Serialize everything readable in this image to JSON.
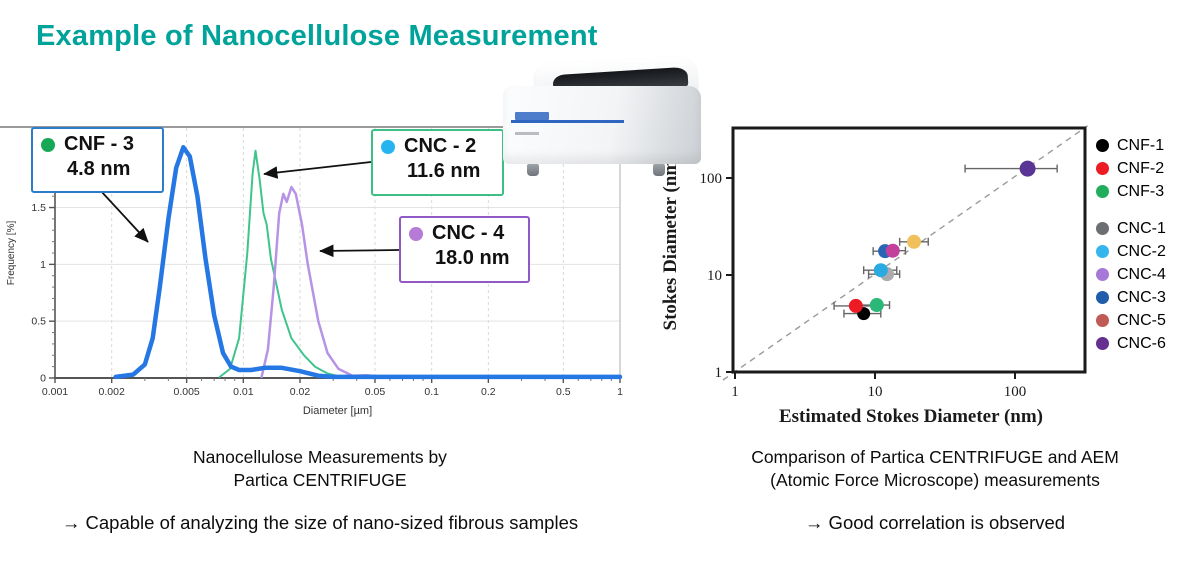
{
  "slide": {
    "title": "Example of Nanocellulose Measurement",
    "title_color": "#00a39a"
  },
  "left_panel": {
    "callouts": [
      {
        "name": "CNF - 3",
        "value": "4.8 nm",
        "dot_color": "#17a857",
        "border_color": "#2d7cc9"
      },
      {
        "name": "CNC - 2",
        "value": "11.6 nm",
        "dot_color": "#25b4f0",
        "border_color": "#3bbf85"
      },
      {
        "name": "CNC - 4",
        "value": "18.0 nm",
        "dot_color": "#b57bd5",
        "border_color": "#9059c5"
      }
    ],
    "caption_line1": "Nanocellulose Measurements by",
    "caption_line2": "Partica CENTRIFUGE",
    "bullet": "→ Capable of analyzing the size of nano-sized fibrous samples"
  },
  "right_panel": {
    "caption_line1": "Comparison of Partica CENTRIFUGE and AEM",
    "caption_line2": "(Atomic Force Microscope) measurements",
    "bullet": "→ Good correlation is observed"
  },
  "chart_data": [
    {
      "type": "line",
      "title": "",
      "xlabel": "Diameter [µm]",
      "ylabel": "Frequency [%]",
      "x_scale": "log",
      "xlim": [
        0.001,
        1
      ],
      "ylim": [
        0,
        2.2
      ],
      "x_ticks": [
        0.001,
        0.002,
        0.005,
        0.01,
        0.02,
        0.05,
        0.1,
        0.2,
        0.5,
        1
      ],
      "x_tick_labels": [
        "0.001",
        "0.002",
        "0.005",
        "0.01",
        "0.02",
        "0.05",
        "0.1",
        "0.2",
        "0.5",
        "1"
      ],
      "y_ticks": [
        0,
        0.5,
        1,
        1.5
      ],
      "y_tick_labels": [
        "0",
        "0.5",
        "1",
        "1.5"
      ],
      "grid": true,
      "series": [
        {
          "name": "CNC-2",
          "peak_nm": 11.6,
          "color": "#3ec48c",
          "width": 2,
          "points": [
            [
              0.0075,
              0.01
            ],
            [
              0.0085,
              0.08
            ],
            [
              0.0095,
              0.35
            ],
            [
              0.0105,
              1.1
            ],
            [
              0.0112,
              1.8
            ],
            [
              0.0116,
              2.0
            ],
            [
              0.0122,
              1.75
            ],
            [
              0.0128,
              1.45
            ],
            [
              0.0133,
              1.35
            ],
            [
              0.014,
              1.05
            ],
            [
              0.016,
              0.6
            ],
            [
              0.018,
              0.35
            ],
            [
              0.021,
              0.2
            ],
            [
              0.024,
              0.1
            ],
            [
              0.028,
              0.04
            ],
            [
              0.033,
              0.01
            ],
            [
              0.04,
              0.005
            ],
            [
              0.1,
              0.005
            ],
            [
              1,
              0.005
            ]
          ]
        },
        {
          "name": "CNC-4",
          "peak_nm": 18.0,
          "color": "#b793e6",
          "width": 2.5,
          "points": [
            [
              0.0125,
              0.01
            ],
            [
              0.0135,
              0.25
            ],
            [
              0.0145,
              0.8
            ],
            [
              0.0155,
              1.45
            ],
            [
              0.0163,
              1.62
            ],
            [
              0.017,
              1.55
            ],
            [
              0.018,
              1.68
            ],
            [
              0.019,
              1.62
            ],
            [
              0.0205,
              1.35
            ],
            [
              0.022,
              1.0
            ],
            [
              0.025,
              0.5
            ],
            [
              0.028,
              0.22
            ],
            [
              0.032,
              0.08
            ],
            [
              0.038,
              0.02
            ],
            [
              0.045,
              0.025
            ],
            [
              0.055,
              0.01
            ],
            [
              0.07,
              0.005
            ],
            [
              0.12,
              0.005
            ]
          ]
        },
        {
          "name": "CNF-3",
          "peak_nm": 4.8,
          "color": "#2577e3",
          "width": 4.5,
          "points": [
            [
              0.0021,
              0.01
            ],
            [
              0.0026,
              0.03
            ],
            [
              0.003,
              0.12
            ],
            [
              0.0033,
              0.35
            ],
            [
              0.0036,
              0.8
            ],
            [
              0.004,
              1.4
            ],
            [
              0.0044,
              1.85
            ],
            [
              0.0048,
              2.03
            ],
            [
              0.0052,
              1.95
            ],
            [
              0.0057,
              1.6
            ],
            [
              0.0063,
              1.05
            ],
            [
              0.007,
              0.55
            ],
            [
              0.0078,
              0.22
            ],
            [
              0.0086,
              0.1
            ],
            [
              0.0095,
              0.07
            ],
            [
              0.011,
              0.07
            ],
            [
              0.013,
              0.09
            ],
            [
              0.016,
              0.09
            ],
            [
              0.02,
              0.06
            ],
            [
              0.025,
              0.02
            ],
            [
              0.03,
              0.01
            ],
            [
              0.05,
              0.01
            ],
            [
              0.1,
              0.01
            ],
            [
              0.5,
              0.01
            ],
            [
              1,
              0.01
            ]
          ]
        }
      ]
    },
    {
      "type": "scatter",
      "title": "",
      "xlabel": "Estimated Stokes Diameter (nm)",
      "ylabel": "Stokes Diameter (nm)",
      "x_scale": "log",
      "y_scale": "log",
      "xlim": [
        1,
        316
      ],
      "ylim": [
        1,
        330
      ],
      "x_ticks": [
        1,
        10,
        100
      ],
      "y_ticks": [
        1,
        10,
        100
      ],
      "x_tick_labels": [
        "1",
        "10",
        "100"
      ],
      "y_tick_labels": [
        "1",
        "10",
        "100"
      ],
      "identity_line": {
        "style": "dashed",
        "color": "#9a9a9a"
      },
      "points": [
        {
          "series": "CNC-6",
          "x": 123,
          "y": 125,
          "xerr": [
            44,
            200
          ],
          "color": "#5b3596",
          "r": 8
        },
        {
          "series": "CNF-1",
          "x": 8.3,
          "y": 4.0,
          "xerr": [
            6.0,
            11.0
          ],
          "color": "#000000",
          "r": 6.5
        },
        {
          "series": "CNF-2",
          "x": 7.3,
          "y": 4.8,
          "xerr": [
            5.1,
            9.5
          ],
          "color": "#ed1c24",
          "r": 7
        },
        {
          "series": "CNF-3",
          "x": 10.3,
          "y": 4.9,
          "xerr": [
            7.5,
            12.7
          ],
          "color": "#29b877",
          "r": 7
        },
        {
          "series": "CNC-1",
          "x": 12.2,
          "y": 10.2,
          "xerr": [
            9.0,
            15.0
          ],
          "color": "#a9abae",
          "r": 7
        },
        {
          "series": "CNC-2",
          "x": 11.0,
          "y": 11.2,
          "xerr": [
            8.3,
            14.3
          ],
          "color": "#29abe2",
          "r": 7
        },
        {
          "series": "CNC-3",
          "x": 11.8,
          "y": 17.6,
          "xerr": [
            9.7,
            14.0
          ],
          "color": "#2a65b5",
          "r": 7
        },
        {
          "series": "CNC-4",
          "x": 13.4,
          "y": 17.8,
          "xerr": [
            11.0,
            16.5
          ],
          "color": "#c2419c",
          "r": 7
        },
        {
          "series": "CNC-5",
          "x": 19.0,
          "y": 22.0,
          "xerr": [
            15.0,
            24.0
          ],
          "color": "#f0c05a",
          "r": 7
        }
      ],
      "legend": [
        {
          "label": "CNF-1",
          "color": "#000000"
        },
        {
          "label": "CNF-2",
          "color": "#ed1c24"
        },
        {
          "label": "CNF-3",
          "color": "#22ac5e"
        },
        {
          "label": "CNC-1",
          "color": "#6d6e71",
          "gap_before": true
        },
        {
          "label": "CNC-2",
          "color": "#35b5ee"
        },
        {
          "label": "CNC-4",
          "color": "#a678d8"
        },
        {
          "label": "CNC-3",
          "color": "#1f5caa"
        },
        {
          "label": "CNC-5",
          "color": "#c05a55"
        },
        {
          "label": "CNC-6",
          "color": "#663090"
        }
      ],
      "legend_position": "right"
    }
  ]
}
